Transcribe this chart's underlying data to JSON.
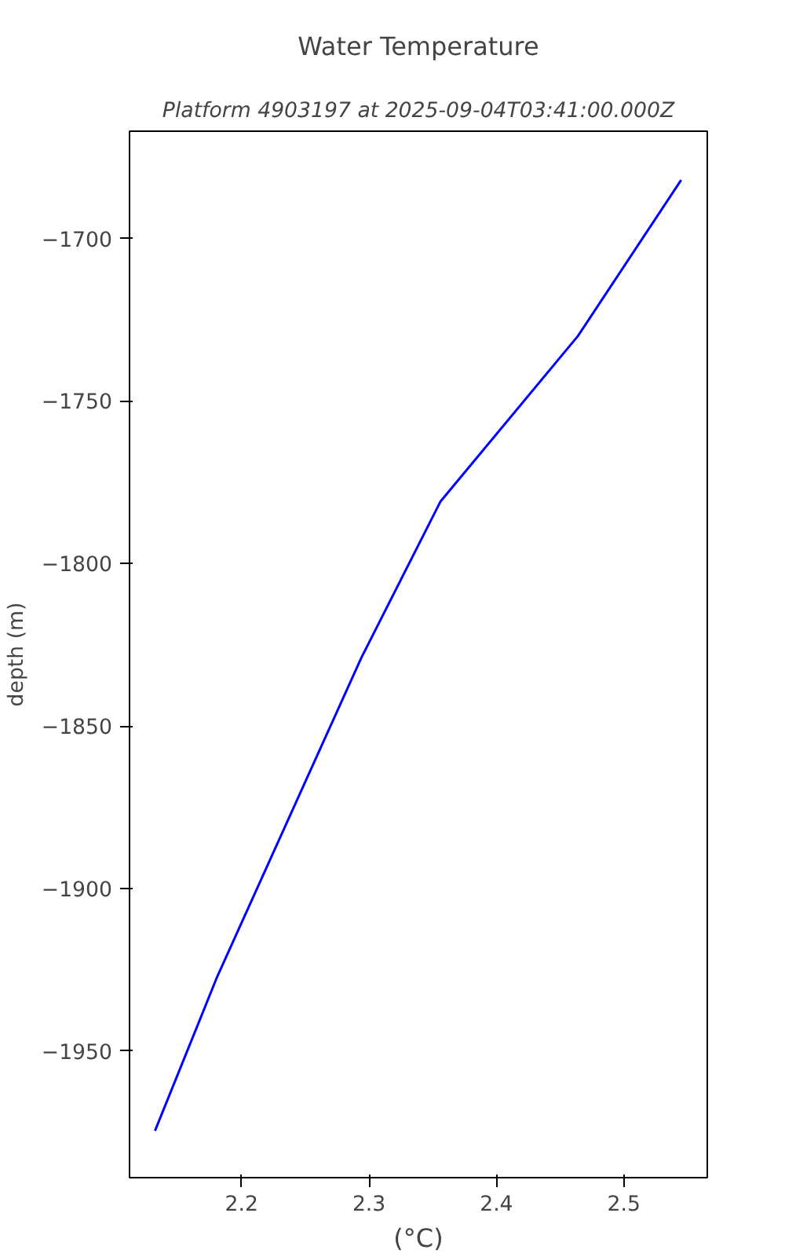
{
  "chart_data": {
    "type": "line",
    "title": "Water Temperature",
    "subtitle": "Platform 4903197 at 2025-09-04T03:41:00.000Z",
    "xlabel": "(°C)",
    "ylabel": "depth (m)",
    "x": [
      2.132,
      2.181,
      2.294,
      2.356,
      2.464,
      2.545
    ],
    "series": [
      {
        "color": "#0000ff",
        "values": [
          -1974.6,
          -1927,
          -1829,
          -1781,
          -1730,
          -1682
        ]
      }
    ],
    "xlim": [
      2.112,
      2.5655
    ],
    "ylim": [
      -1989,
      -1667
    ],
    "xticks": [
      2.2,
      2.3,
      2.4,
      2.5
    ],
    "yticks": [
      {
        "value": -1950,
        "label": "−1950"
      },
      {
        "value": -1900,
        "label": "−1900"
      },
      {
        "value": -1850,
        "label": "−1850"
      },
      {
        "value": -1800,
        "label": "−1800"
      },
      {
        "value": -1750,
        "label": "−1750"
      },
      {
        "value": -1700,
        "label": "−1700"
      }
    ],
    "grid": false,
    "marker": "none",
    "line_style": "solid"
  }
}
